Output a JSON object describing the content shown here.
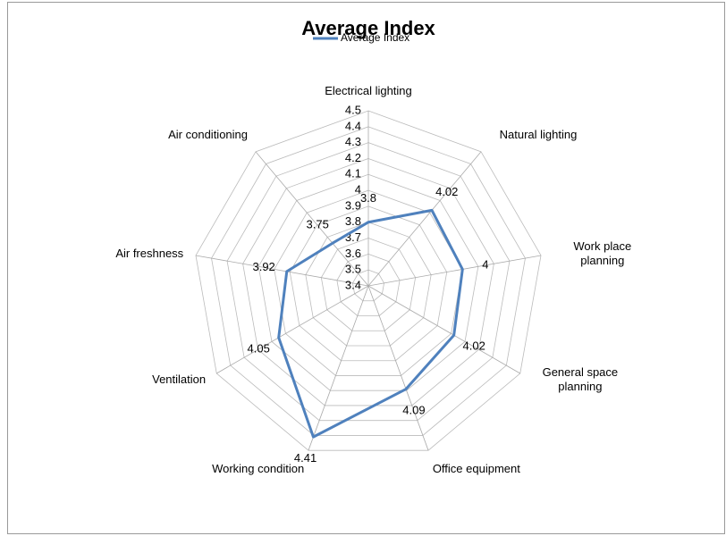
{
  "chart_data": {
    "type": "radar",
    "title": "Average Index",
    "categories": [
      "Electrical lighting",
      "Natural lighting",
      "Work place planning",
      "General space planning",
      "Office equipment",
      "Working condition",
      "Ventilation",
      "Air freshness",
      "Air conditioning"
    ],
    "series": [
      {
        "name": "Average Index",
        "color": "#4f81bd",
        "values": [
          3.8,
          4.02,
          4,
          4.02,
          4.09,
          4.41,
          4.05,
          3.92,
          3.75
        ]
      }
    ],
    "ylim": [
      3.4,
      4.5
    ],
    "yticks": [
      3.4,
      3.5,
      3.6,
      3.7,
      3.8,
      3.9,
      4,
      4.1,
      4.2,
      4.3,
      4.4,
      4.5
    ],
    "grid": true,
    "legend": "top"
  }
}
